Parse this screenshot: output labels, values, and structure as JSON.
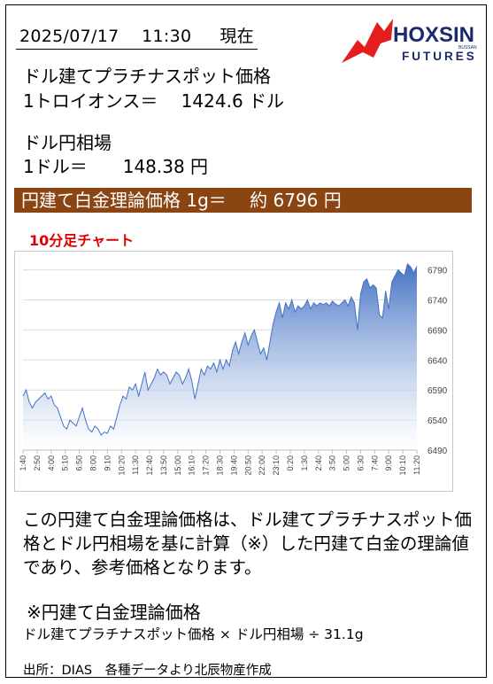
{
  "header": {
    "date_text": "2025/07/17　 11:30 　 現在",
    "logo": {
      "word1": "HOXSIN",
      "word2": "FUTURES",
      "small": "BUSSAN",
      "brand_color": "#e41d1d",
      "text_color": "#1a2a6c"
    }
  },
  "platinum": {
    "label": "ドル建てプラチナスポット価格",
    "value_line": "1トロイオンス＝　 1424.6 ドル"
  },
  "fx": {
    "label": "ドル円相場",
    "value_line": "1ドル＝　　148.38 円"
  },
  "banner": {
    "text": "円建て白金理論価格 1g＝　 約 6796 円",
    "color": "#8b4513"
  },
  "chart_title": "10分足チャート",
  "chart_data": {
    "type": "area",
    "title": "10分足チャート",
    "xlabel": "",
    "ylabel": "",
    "ylim": [
      6490,
      6810
    ],
    "yticks": [
      6490,
      6540,
      6590,
      6640,
      6690,
      6740,
      6790
    ],
    "xtick_labels": [
      "1:40",
      "2:50",
      "4:00",
      "5:10",
      "6:50",
      "8:00",
      "9:10",
      "10:20",
      "11:30",
      "12:40",
      "13:50",
      "15:00",
      "16:10",
      "17:20",
      "18:30",
      "19:40",
      "20:50",
      "22:00",
      "23:10",
      "0:20",
      "1:30",
      "2:40",
      "3:50",
      "5:00",
      "6:30",
      "7:40",
      "9:00",
      "10:10",
      "11:20"
    ],
    "grid": true,
    "fill_color": "#4472c4",
    "y": [
      6580,
      6590,
      6570,
      6560,
      6570,
      6575,
      6580,
      6585,
      6575,
      6580,
      6565,
      6560,
      6545,
      6530,
      6525,
      6540,
      6535,
      6530,
      6545,
      6560,
      6540,
      6525,
      6520,
      6530,
      6525,
      6515,
      6520,
      6518,
      6530,
      6525,
      6545,
      6565,
      6580,
      6575,
      6595,
      6590,
      6600,
      6580,
      6600,
      6620,
      6590,
      6600,
      6610,
      6625,
      6615,
      6620,
      6615,
      6600,
      6610,
      6620,
      6615,
      6600,
      6610,
      6625,
      6605,
      6575,
      6600,
      6625,
      6615,
      6630,
      6625,
      6635,
      6620,
      6640,
      6625,
      6640,
      6630,
      6655,
      6670,
      6650,
      6670,
      6685,
      6665,
      6680,
      6690,
      6670,
      6650,
      6660,
      6640,
      6670,
      6700,
      6720,
      6735,
      6710,
      6735,
      6725,
      6740,
      6720,
      6730,
      6725,
      6730,
      6740,
      6725,
      6735,
      6730,
      6735,
      6732,
      6735,
      6730,
      6738,
      6733,
      6730,
      6735,
      6740,
      6730,
      6745,
      6735,
      6690,
      6750,
      6770,
      6775,
      6760,
      6765,
      6760,
      6715,
      6710,
      6755,
      6725,
      6770,
      6780,
      6790,
      6785,
      6780,
      6800,
      6795,
      6785,
      6796
    ]
  },
  "explanation": "この円建て白金理論価格は、ドル建てプラチナスポット価格とドル円相場を基に計算（※）した円建て白金の理論値であり、参考価格となります。",
  "formula": {
    "title": "※円建て白金理論価格",
    "text": "ドル建てプラチナスポット価格 × ドル円相場 ÷ 31.1g"
  },
  "source": "出所：DIAS　各種データより北辰物産作成"
}
